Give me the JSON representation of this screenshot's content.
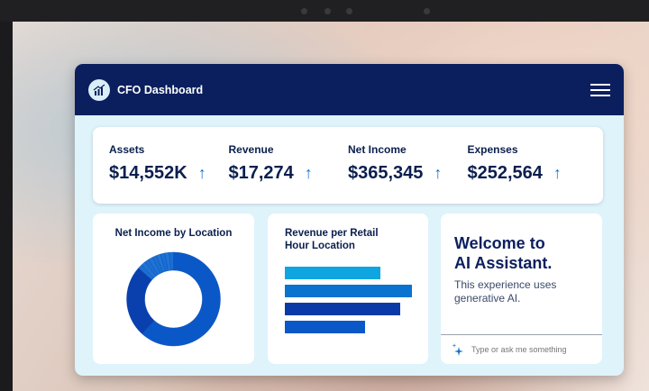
{
  "header": {
    "title": "CFO Dashboard",
    "logo_icon": "chart-growth-icon",
    "menu_icon": "hamburger-menu-icon"
  },
  "kpis": [
    {
      "label": "Assets",
      "value": "$14,552K",
      "trend": "up"
    },
    {
      "label": "Revenue",
      "value": "$17,274",
      "trend": "up"
    },
    {
      "label": "Net Income",
      "value": "$365,345",
      "trend": "up"
    },
    {
      "label": "Expenses",
      "value": "$252,564",
      "trend": "up"
    }
  ],
  "arrow_glyph": "↑",
  "net_income": {
    "title": "Net Income by Location"
  },
  "revenue": {
    "title_line1": "Revenue per Retail",
    "title_line2": "Hour Location"
  },
  "chart_data": [
    {
      "type": "pie",
      "title": "Net Income by Location",
      "donut": true,
      "values": [
        62,
        25,
        1.5,
        1.5,
        1.5,
        1.5,
        1.5,
        1.5,
        1.5,
        1.5,
        1.5
      ],
      "colors": [
        "#0a58c8",
        "#0a3fae",
        "#1b6fd0",
        "#1f74d6",
        "#1b6fd0",
        "#1f74d6",
        "#1b6fd0",
        "#1f74d6",
        "#1b6fd0",
        "#1f74d6",
        "#1b6fd0"
      ]
    },
    {
      "type": "bar",
      "orientation": "horizontal",
      "title": "Revenue per Retail Hour Location",
      "values": [
        75,
        100,
        91,
        63
      ],
      "colors": [
        "#0ea5e0",
        "#0a73cf",
        "#0a3aa8",
        "#0a58c8"
      ]
    }
  ],
  "assistant": {
    "title_line1": "Welcome to",
    "title_line2": "AI Assistant.",
    "subtitle": "This experience uses generative AI.",
    "placeholder": "Type or ask me something",
    "sparkle_icon": "sparkle-icon"
  }
}
